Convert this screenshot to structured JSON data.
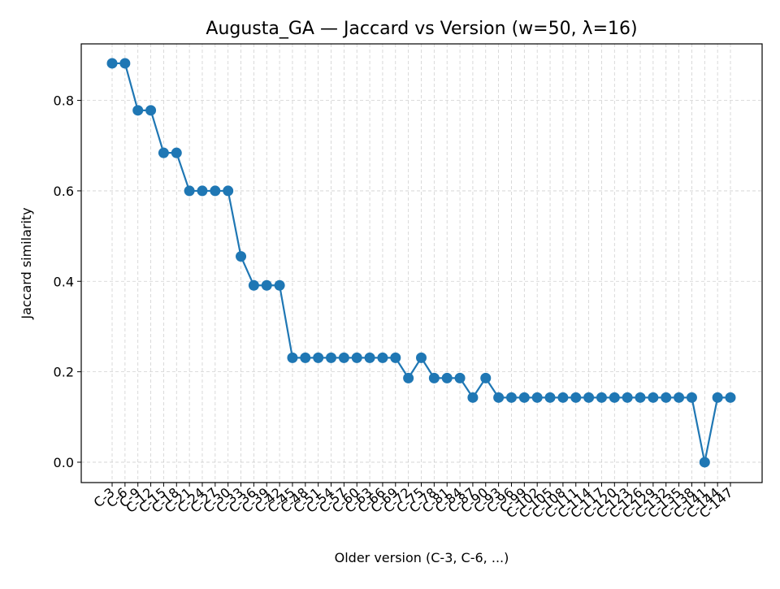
{
  "chart_data": {
    "type": "line",
    "title": "Augusta_GA — Jaccard vs Version (w=50, λ=16)",
    "xlabel": "Older version (C-3, C-6, ...)",
    "ylabel": "Jaccard similarity",
    "ylim": [
      -0.045,
      0.925
    ],
    "yticks": [
      0.0,
      0.2,
      0.4,
      0.6,
      0.8
    ],
    "ytick_labels": [
      "0.0",
      "0.2",
      "0.4",
      "0.6",
      "0.8"
    ],
    "grid": true,
    "categories": [
      "C-3",
      "C-6",
      "C-9",
      "C-12",
      "C-15",
      "C-18",
      "C-21",
      "C-24",
      "C-27",
      "C-30",
      "C-33",
      "C-36",
      "C-39",
      "C-42",
      "C-45",
      "C-48",
      "C-51",
      "C-54",
      "C-57",
      "C-60",
      "C-63",
      "C-66",
      "C-69",
      "C-72",
      "C-75",
      "C-78",
      "C-81",
      "C-84",
      "C-87",
      "C-90",
      "C-93",
      "C-96",
      "C-99",
      "C-102",
      "C-105",
      "C-108",
      "C-111",
      "C-114",
      "C-117",
      "C-120",
      "C-123",
      "C-126",
      "C-129",
      "C-132",
      "C-135",
      "C-138",
      "C-141",
      "C-144",
      "C-147"
    ],
    "series": [
      {
        "name": "",
        "color": "#1f77b4",
        "values": [
          0.882,
          0.882,
          0.778,
          0.778,
          0.684,
          0.684,
          0.6,
          0.6,
          0.6,
          0.6,
          0.455,
          0.391,
          0.391,
          0.391,
          0.231,
          0.231,
          0.231,
          0.231,
          0.231,
          0.231,
          0.231,
          0.231,
          0.231,
          0.186,
          0.231,
          0.186,
          0.186,
          0.186,
          0.143,
          0.186,
          0.143,
          0.143,
          0.143,
          0.143,
          0.143,
          0.143,
          0.143,
          0.143,
          0.143,
          0.143,
          0.143,
          0.143,
          0.143,
          0.143,
          0.143,
          0.143,
          0.0,
          0.143,
          0.143
        ]
      }
    ]
  }
}
